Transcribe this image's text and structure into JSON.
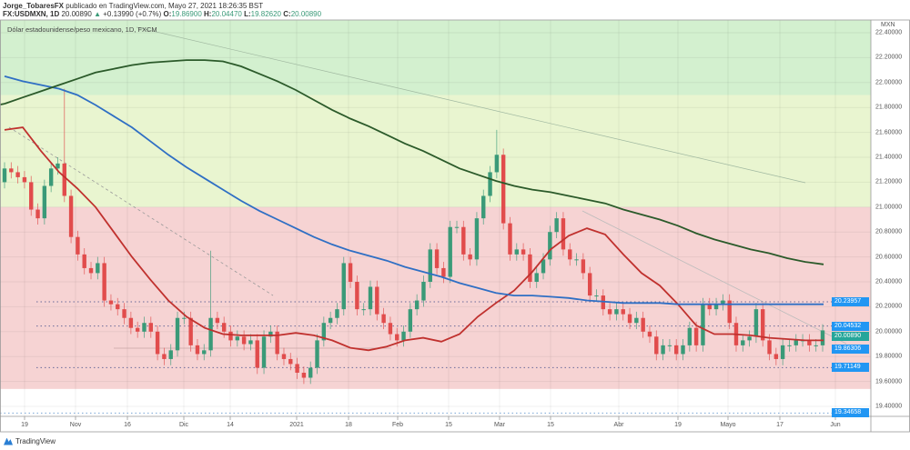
{
  "header": {
    "author": "Jorge_TobaresFX",
    "published": "publicado en TradingView.com, Mayo 27, 2021 18:26:35 BST",
    "symbol": "FX:USDMXN, 1D",
    "last": "20.00890",
    "change": "+0.13990 (+0.7%)",
    "o_label": "O:",
    "o": "19.86900",
    "h_label": "H:",
    "h": "20.04470",
    "l_label": "L:",
    "l": "19.82620",
    "c_label": "C:",
    "c": "20.00890"
  },
  "legend": "Dólar estadounidense/peso mexicano, 1D, FXCM",
  "footer": {
    "brand": "TradingView"
  },
  "colors": {
    "up": "#3a9a78",
    "down": "#e14c4c",
    "ma_red": "#c0312e",
    "ma_blue": "#2f6fc4",
    "ma_green": "#2b5a2a",
    "zone_green": "#d3f0cf",
    "zone_yellow": "#e9f5d0",
    "zone_red": "#f6d3d3",
    "tag_blue": "#2196f3",
    "tag_green": "#26a69a"
  },
  "chart_data": {
    "type": "candlestick",
    "title": "Dólar estadounidense/peso mexicano, 1D, FXCM",
    "ylim": [
      19.3,
      22.5
    ],
    "currency": "MXN",
    "y_ticks": [
      "22.40000",
      "22.20000",
      "22.00000",
      "21.80000",
      "21.60000",
      "21.40000",
      "21.20000",
      "21.00000",
      "20.80000",
      "20.60000",
      "20.40000",
      "20.20000",
      "20.00000",
      "19.80000",
      "19.60000",
      "19.40000"
    ],
    "x_ticks": [
      "19",
      "Nov",
      "16",
      "Dic",
      "14",
      "2021",
      "18",
      "Feb",
      "15",
      "Mar",
      "15",
      "Abr",
      "19",
      "Mayo",
      "17",
      "Jun"
    ],
    "closes": [
      21.31,
      21.28,
      21.24,
      21.2,
      20.98,
      20.91,
      21.17,
      21.31,
      21.35,
      21.09,
      20.76,
      20.62,
      20.51,
      20.47,
      20.55,
      20.25,
      20.22,
      20.18,
      20.11,
      20.03,
      20.0,
      20.07,
      20.0,
      19.82,
      19.78,
      19.85,
      20.11,
      20.11,
      19.89,
      19.82,
      19.85,
      20.11,
      20.07,
      20.0,
      19.93,
      19.96,
      19.9,
      19.93,
      19.71,
      19.96,
      20.0,
      19.82,
      19.78,
      19.74,
      19.67,
      19.63,
      19.71,
      19.93,
      20.07,
      20.11,
      20.18,
      20.55,
      20.4,
      20.18,
      20.18,
      20.36,
      20.14,
      20.07,
      19.98,
      19.93,
      20.0,
      20.18,
      20.25,
      20.4,
      20.66,
      20.51,
      20.44,
      20.84,
      20.84,
      20.62,
      20.58,
      20.91,
      21.09,
      21.28,
      21.42,
      20.87,
      20.62,
      20.66,
      20.62,
      20.4,
      20.47,
      20.58,
      20.8,
      20.91,
      20.66,
      20.58,
      20.58,
      20.47,
      20.29,
      20.29,
      20.18,
      20.14,
      20.18,
      20.14,
      20.07,
      20.11,
      20.0,
      19.96,
      19.82,
      19.89,
      19.89,
      19.82,
      19.89,
      20.03,
      19.89,
      20.22,
      20.18,
      20.22,
      20.25,
      20.07,
      19.89,
      19.93,
      19.96,
      20.18,
      19.93,
      19.82,
      19.78,
      19.89,
      19.89,
      19.93,
      19.93,
      19.89,
      19.89,
      20.01
    ],
    "first_open": 21.2,
    "high_spikes": {
      "9": 21.95,
      "31": 20.65,
      "74": 21.62
    },
    "moving_averages": [
      {
        "name": "MA short",
        "color_key": "ma_red",
        "values": [
          21.62,
          21.64,
          21.45,
          21.28,
          21.15,
          21.0,
          20.8,
          20.6,
          20.42,
          20.25,
          20.12,
          20.03,
          19.98,
          19.97,
          19.97,
          19.97,
          19.99,
          19.97,
          19.93,
          19.87,
          19.85,
          19.88,
          19.93,
          19.95,
          19.92,
          19.98,
          20.12,
          20.23,
          20.33,
          20.48,
          20.66,
          20.77,
          20.83,
          20.78,
          20.62,
          20.47,
          20.37,
          20.22,
          20.05,
          19.98,
          19.98,
          19.97,
          19.95,
          19.94,
          19.93,
          19.93
        ]
      },
      {
        "name": "MA mid",
        "color_key": "ma_blue",
        "values": [
          22.05,
          22.01,
          21.98,
          21.95,
          21.9,
          21.82,
          21.73,
          21.64,
          21.53,
          21.42,
          21.32,
          21.23,
          21.14,
          21.05,
          20.97,
          20.9,
          20.83,
          20.76,
          20.7,
          20.65,
          20.61,
          20.57,
          20.52,
          20.48,
          20.44,
          20.39,
          20.35,
          20.31,
          20.29,
          20.29,
          20.28,
          20.27,
          20.25,
          20.24,
          20.23,
          20.23,
          20.23,
          20.22,
          20.22,
          20.22,
          20.22,
          20.22,
          20.22,
          20.22,
          20.22,
          20.22
        ]
      },
      {
        "name": "MA long",
        "color_key": "ma_green",
        "values": [
          21.83,
          21.88,
          21.93,
          21.98,
          22.03,
          22.08,
          22.11,
          22.14,
          22.16,
          22.17,
          22.18,
          22.18,
          22.17,
          22.13,
          22.07,
          22.01,
          21.94,
          21.86,
          21.78,
          21.71,
          21.65,
          21.58,
          21.51,
          21.45,
          21.38,
          21.31,
          21.26,
          21.21,
          21.17,
          21.14,
          21.12,
          21.09,
          21.06,
          21.03,
          20.98,
          20.94,
          20.9,
          20.85,
          20.79,
          20.74,
          20.7,
          20.66,
          20.63,
          20.59,
          20.56,
          20.54
        ]
      }
    ],
    "zones": [
      {
        "from": 21.9,
        "to": 22.5,
        "color_key": "zone_green"
      },
      {
        "from": 21.0,
        "to": 21.9,
        "color_key": "zone_yellow"
      },
      {
        "from": 19.54,
        "to": 21.0,
        "color_key": "zone_red"
      }
    ],
    "horizontal_levels": [
      20.23957,
      20.04532,
      19.71149,
      19.34658
    ],
    "price_tags": [
      {
        "label": "20.23957",
        "value": 20.23957,
        "color_key": "tag_blue"
      },
      {
        "label": "20.04532",
        "value": 20.04532,
        "color_key": "tag_blue"
      },
      {
        "label": "20.00890",
        "value": 20.0089,
        "color_key": "tag_green"
      },
      {
        "label": "19.86306",
        "value": 19.86306,
        "color_key": "tag_blue"
      },
      {
        "label": "19.71149",
        "value": 19.71149,
        "color_key": "tag_blue"
      },
      {
        "label": "19.34658",
        "value": 19.34658,
        "color_key": "tag_blue"
      }
    ]
  }
}
